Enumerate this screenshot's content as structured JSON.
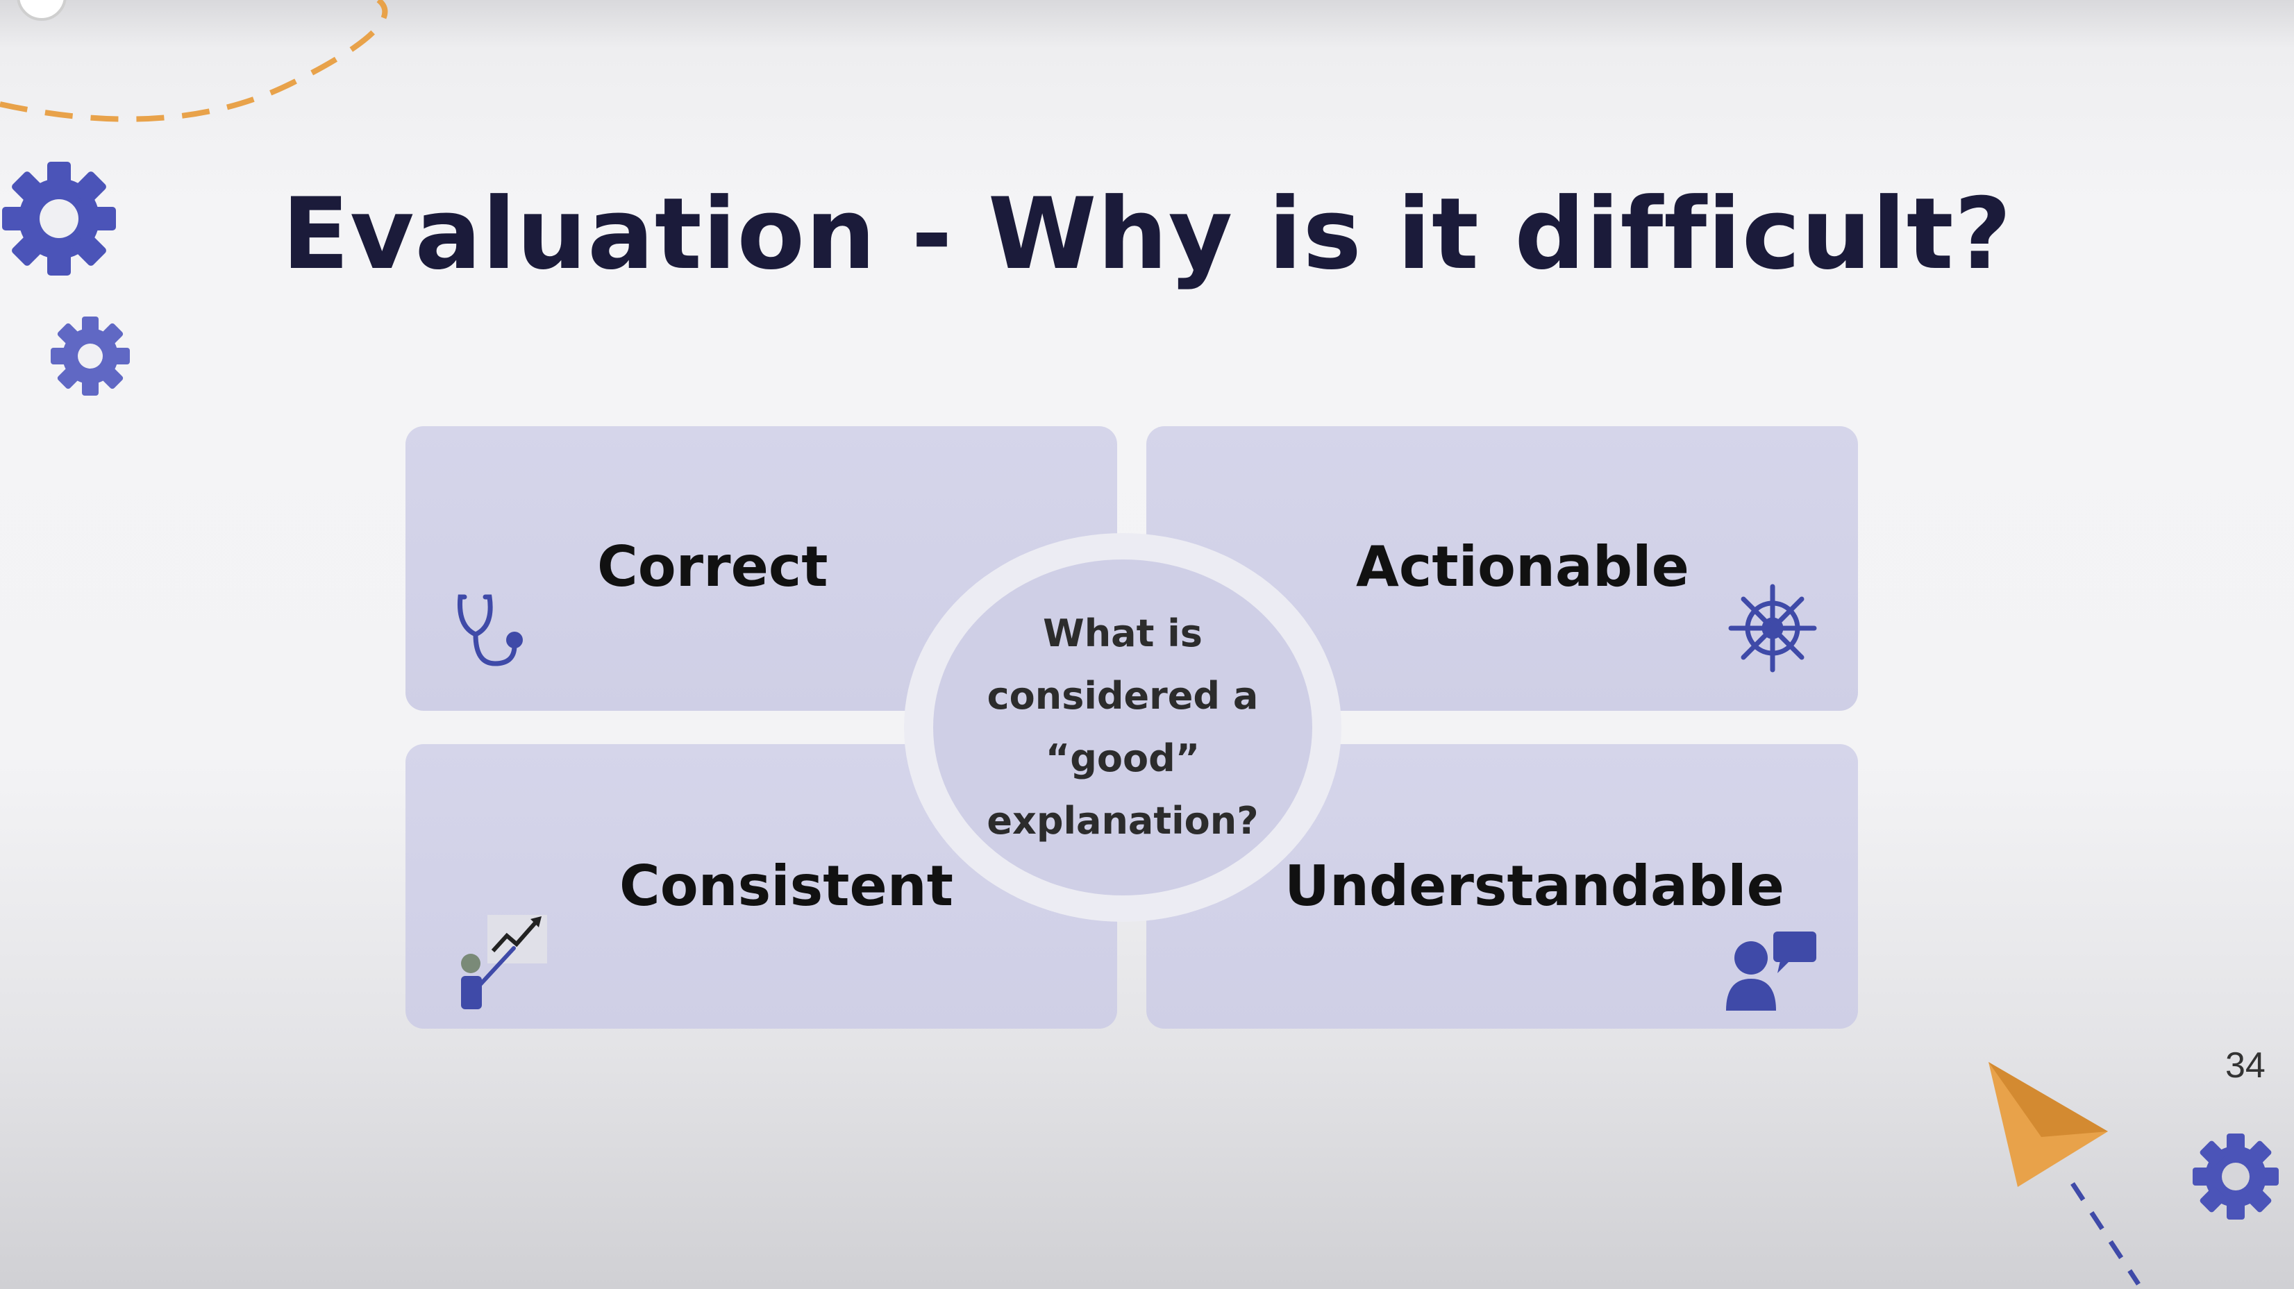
{
  "slide": {
    "title": "Evaluation - Why is it difficult?",
    "page_number": "34"
  },
  "quadrants": {
    "correct": {
      "label": "Correct",
      "icon": "stethoscope-icon"
    },
    "actionable": {
      "label": "Actionable",
      "icon": "ship-wheel-icon"
    },
    "consistent": {
      "label": "Consistent",
      "icon": "person-chart-icon"
    },
    "understandable": {
      "label": "Understandable",
      "icon": "person-speech-icon"
    }
  },
  "center": {
    "lines": [
      "What is",
      "considered a",
      "“good”",
      "explanation?"
    ]
  },
  "colors": {
    "title": "#1b1b3a",
    "quadrant_fill": "#d5d5ea",
    "gear": "#4b54b8",
    "dashed_arc": "#e8a24a",
    "paper_plane": "#e8a24a",
    "plane_trail": "#3f4aa8"
  }
}
